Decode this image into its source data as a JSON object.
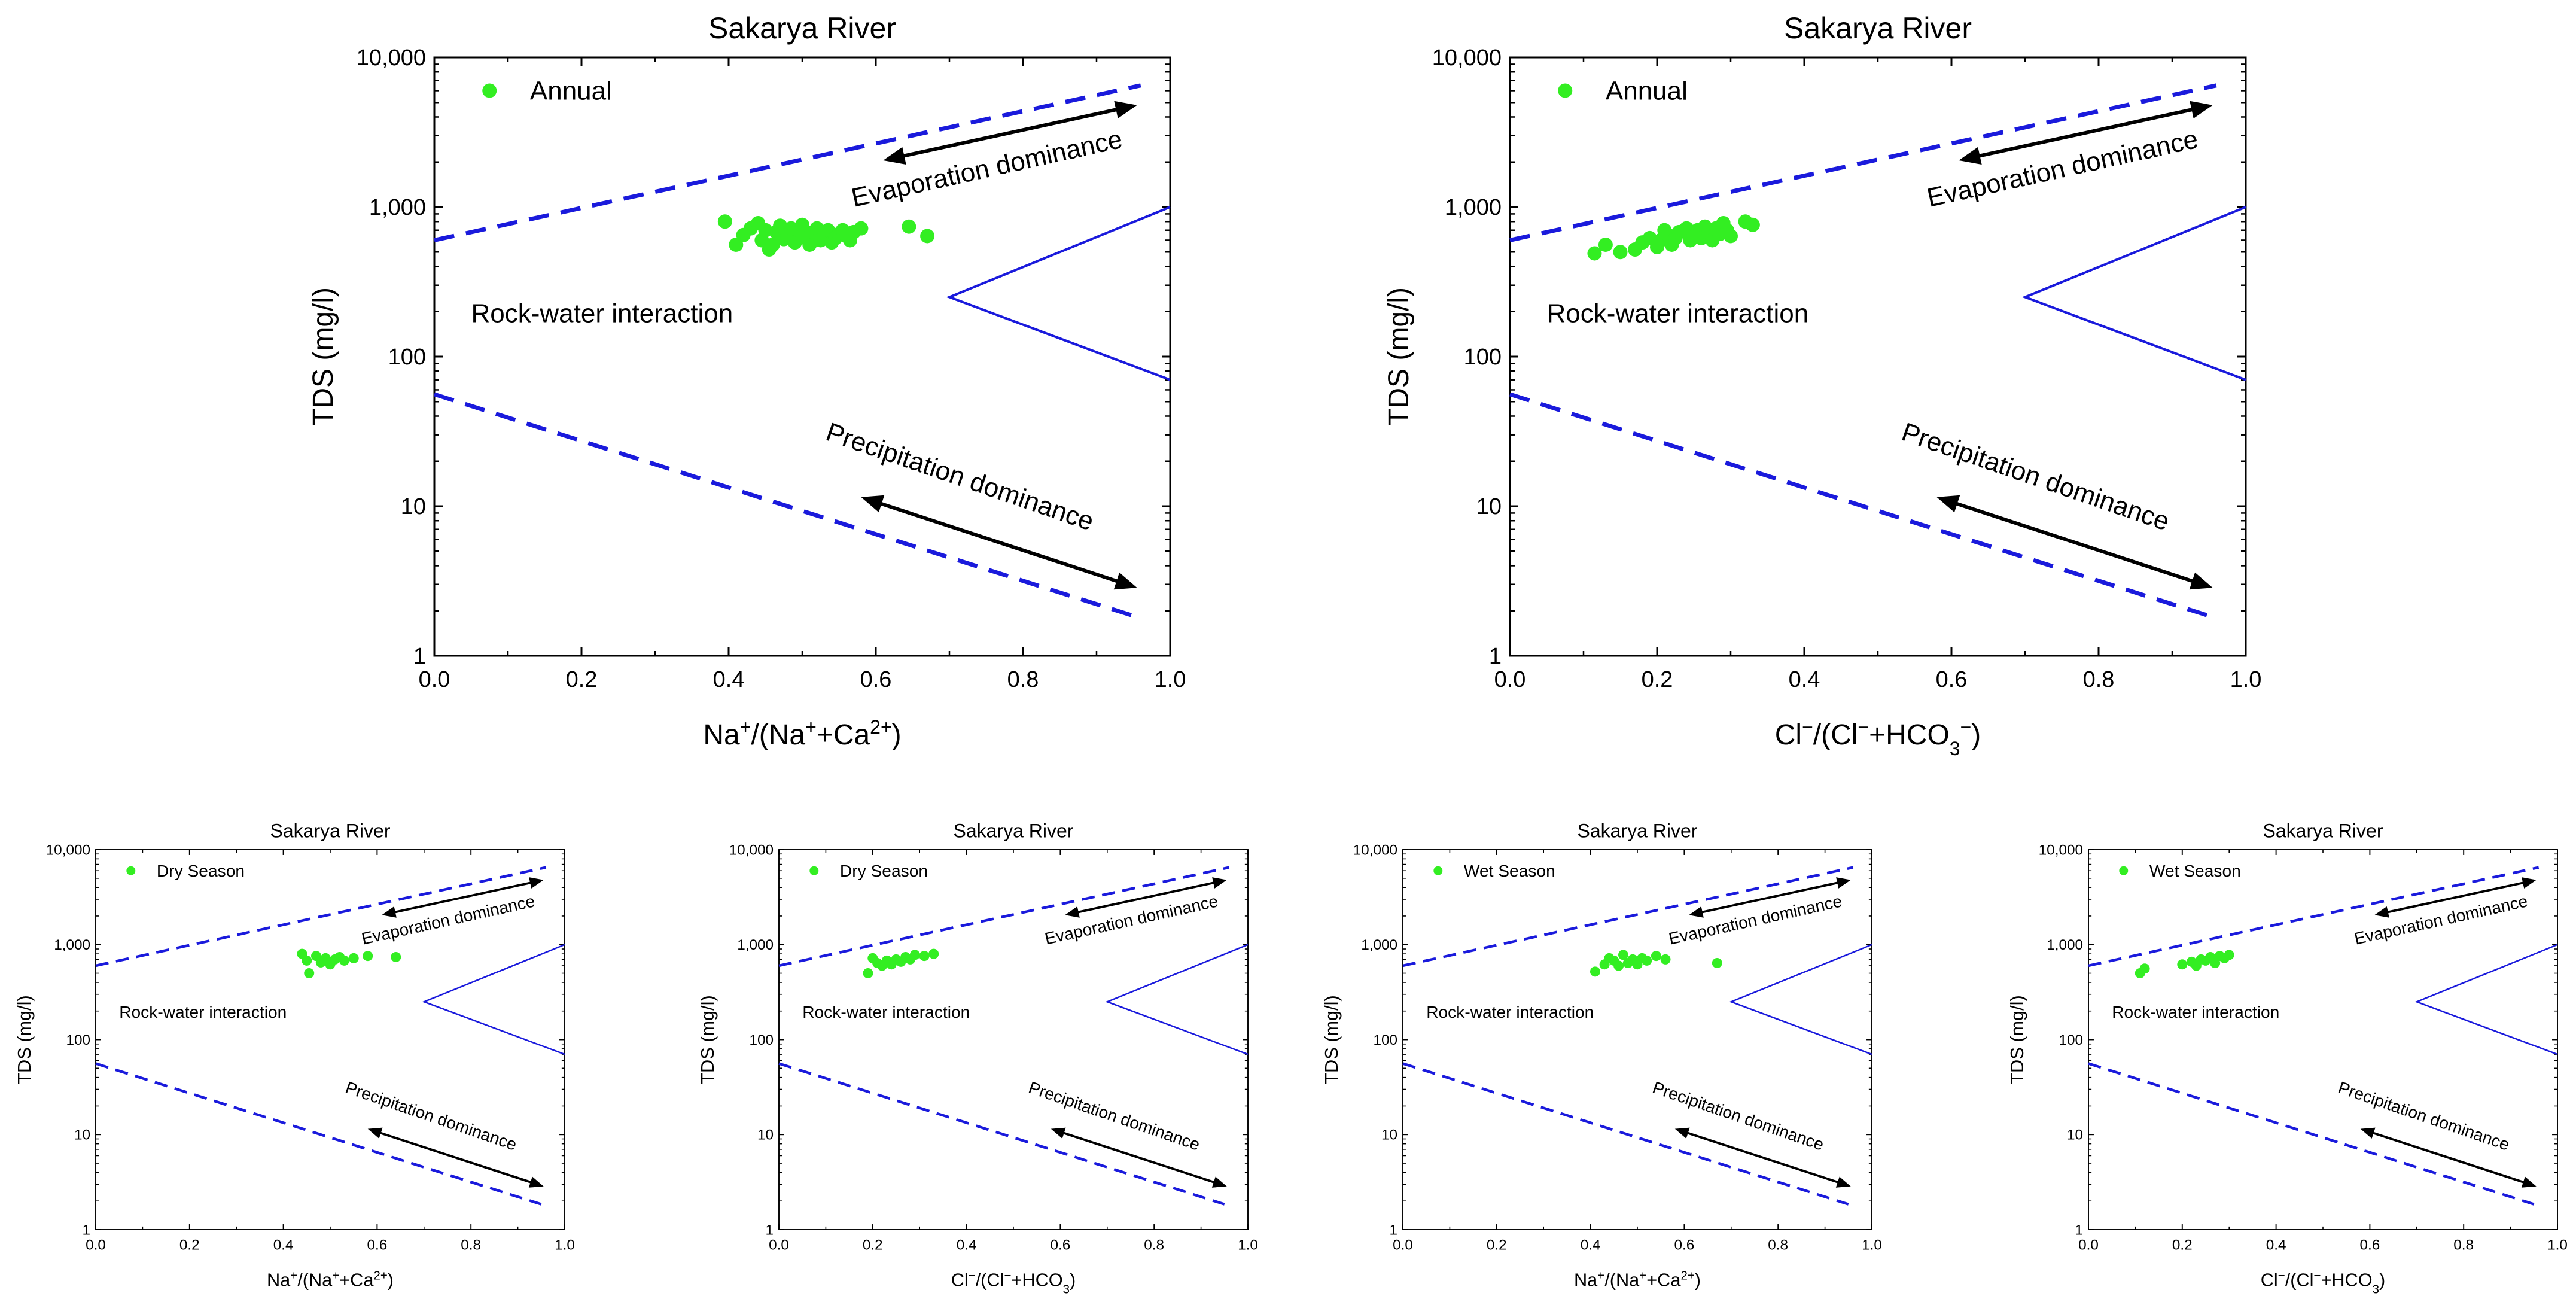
{
  "colors": {
    "marker": "#33ee22",
    "boundary": "#1a1adc",
    "arrow": "#000000",
    "axis": "#000000"
  },
  "chart_data": [
    {
      "type": "scatter",
      "title": "Sakarya River",
      "xlabel_parts": [
        [
          "Na",
          "n"
        ],
        [
          "+",
          "sup"
        ],
        [
          "/(Na",
          "n"
        ],
        [
          "+",
          "sup"
        ],
        [
          "+Ca",
          "n"
        ],
        [
          "2+",
          "sup"
        ],
        [
          ")",
          "n"
        ]
      ],
      "ylabel": "TDS (mg/l)",
      "xlim": [
        0,
        1
      ],
      "ylim": [
        1,
        10000
      ],
      "yscale": "log",
      "xticks": [
        "0.0",
        "0.2",
        "0.4",
        "0.6",
        "0.8",
        "1.0"
      ],
      "yticks": [
        "1",
        "10",
        "100",
        "1,000",
        "10,000"
      ],
      "legend": "Annual",
      "labels": {
        "rock": "Rock-water interaction",
        "evap": "Evaporation dominance",
        "precip": "Precipitation dominance"
      },
      "points": [
        [
          0.395,
          800
        ],
        [
          0.41,
          560
        ],
        [
          0.42,
          650
        ],
        [
          0.43,
          720
        ],
        [
          0.44,
          780
        ],
        [
          0.445,
          600
        ],
        [
          0.45,
          700
        ],
        [
          0.455,
          520
        ],
        [
          0.46,
          560
        ],
        [
          0.465,
          680
        ],
        [
          0.47,
          750
        ],
        [
          0.475,
          610
        ],
        [
          0.48,
          640
        ],
        [
          0.485,
          720
        ],
        [
          0.49,
          580
        ],
        [
          0.495,
          700
        ],
        [
          0.5,
          760
        ],
        [
          0.505,
          620
        ],
        [
          0.51,
          560
        ],
        [
          0.515,
          680
        ],
        [
          0.52,
          720
        ],
        [
          0.525,
          600
        ],
        [
          0.53,
          650
        ],
        [
          0.535,
          700
        ],
        [
          0.54,
          580
        ],
        [
          0.545,
          620
        ],
        [
          0.55,
          660
        ],
        [
          0.555,
          700
        ],
        [
          0.56,
          640
        ],
        [
          0.565,
          600
        ],
        [
          0.57,
          680
        ],
        [
          0.58,
          720
        ],
        [
          0.645,
          740
        ],
        [
          0.67,
          640
        ]
      ]
    },
    {
      "type": "scatter",
      "title": "Sakarya River",
      "xlabel_parts": [
        [
          "Cl",
          "n"
        ],
        [
          "−",
          "sup"
        ],
        [
          "/(Cl",
          "n"
        ],
        [
          "−",
          "sup"
        ],
        [
          "+HCO",
          "n"
        ],
        [
          "3",
          "sub"
        ],
        [
          "−",
          "sup"
        ],
        [
          ")",
          "n"
        ]
      ],
      "ylabel": "TDS (mg/l)",
      "xlim": [
        0,
        1
      ],
      "ylim": [
        1,
        10000
      ],
      "yscale": "log",
      "xticks": [
        "0.0",
        "0.2",
        "0.4",
        "0.6",
        "0.8",
        "1.0"
      ],
      "yticks": [
        "1",
        "10",
        "100",
        "1,000",
        "10,000"
      ],
      "legend": "Annual",
      "labels": {
        "rock": "Rock-water interaction",
        "evap": "Evaporation dominance",
        "precip": "Precipitation dominance"
      },
      "points": [
        [
          0.115,
          490
        ],
        [
          0.13,
          560
        ],
        [
          0.15,
          500
        ],
        [
          0.17,
          520
        ],
        [
          0.18,
          580
        ],
        [
          0.19,
          620
        ],
        [
          0.2,
          540
        ],
        [
          0.205,
          600
        ],
        [
          0.21,
          700
        ],
        [
          0.215,
          650
        ],
        [
          0.22,
          560
        ],
        [
          0.225,
          620
        ],
        [
          0.23,
          680
        ],
        [
          0.24,
          720
        ],
        [
          0.245,
          600
        ],
        [
          0.25,
          650
        ],
        [
          0.255,
          700
        ],
        [
          0.26,
          620
        ],
        [
          0.265,
          740
        ],
        [
          0.27,
          680
        ],
        [
          0.275,
          600
        ],
        [
          0.28,
          720
        ],
        [
          0.285,
          660
        ],
        [
          0.29,
          780
        ],
        [
          0.295,
          700
        ],
        [
          0.3,
          640
        ],
        [
          0.32,
          800
        ],
        [
          0.33,
          760
        ]
      ]
    },
    {
      "type": "scatter",
      "title": "Sakarya River",
      "xlabel_parts": [
        [
          "Na",
          "n"
        ],
        [
          "+",
          "sup"
        ],
        [
          "/(Na",
          "n"
        ],
        [
          "+",
          "sup"
        ],
        [
          "+Ca",
          "n"
        ],
        [
          "2+",
          "sup"
        ],
        [
          ")",
          "n"
        ]
      ],
      "ylabel": "TDS (mg/l)",
      "xlim": [
        0,
        1
      ],
      "ylim": [
        1,
        10000
      ],
      "yscale": "log",
      "xticks": [
        "0.0",
        "0.2",
        "0.4",
        "0.6",
        "0.8",
        "1.0"
      ],
      "yticks": [
        "1",
        "10",
        "100",
        "1,000",
        "10,000"
      ],
      "legend": "Dry Season",
      "labels": {
        "rock": "Rock-water interaction",
        "evap": "Evaporation dominance",
        "precip": "Precipitation dominance"
      },
      "points": [
        [
          0.44,
          800
        ],
        [
          0.45,
          680
        ],
        [
          0.455,
          500
        ],
        [
          0.47,
          760
        ],
        [
          0.48,
          650
        ],
        [
          0.49,
          720
        ],
        [
          0.5,
          620
        ],
        [
          0.51,
          700
        ],
        [
          0.52,
          740
        ],
        [
          0.53,
          680
        ],
        [
          0.55,
          720
        ],
        [
          0.58,
          760
        ],
        [
          0.64,
          740
        ]
      ]
    },
    {
      "type": "scatter",
      "title": "Sakarya River",
      "xlabel_parts": [
        [
          "Cl",
          "n"
        ],
        [
          "−",
          "sup"
        ],
        [
          "/(Cl",
          "n"
        ],
        [
          "−",
          "sup"
        ],
        [
          "+HCO",
          "n"
        ],
        [
          "3",
          "sub"
        ],
        [
          ")",
          "n"
        ]
      ],
      "ylabel": "TDS (mg/l)",
      "xlim": [
        0,
        1
      ],
      "ylim": [
        1,
        10000
      ],
      "yscale": "log",
      "xticks": [
        "0.0",
        "0.2",
        "0.4",
        "0.6",
        "0.8",
        "1.0"
      ],
      "yticks": [
        "1",
        "10",
        "100",
        "1,000",
        "10,000"
      ],
      "legend": "Dry Season",
      "labels": {
        "rock": "Rock-water interaction",
        "evap": "Evaporation dominance",
        "precip": "Precipitation dominance"
      },
      "points": [
        [
          0.19,
          500
        ],
        [
          0.2,
          720
        ],
        [
          0.21,
          640
        ],
        [
          0.22,
          600
        ],
        [
          0.23,
          680
        ],
        [
          0.24,
          620
        ],
        [
          0.25,
          700
        ],
        [
          0.26,
          660
        ],
        [
          0.27,
          740
        ],
        [
          0.28,
          700
        ],
        [
          0.29,
          780
        ],
        [
          0.31,
          760
        ],
        [
          0.33,
          800
        ]
      ]
    },
    {
      "type": "scatter",
      "title": "Sakarya River",
      "xlabel_parts": [
        [
          "Na",
          "n"
        ],
        [
          "+",
          "sup"
        ],
        [
          "/(Na",
          "n"
        ],
        [
          "+",
          "sup"
        ],
        [
          "+Ca",
          "n"
        ],
        [
          "2+",
          "sup"
        ],
        [
          ")",
          "n"
        ]
      ],
      "ylabel": "TDS (mg/l)",
      "xlim": [
        0,
        1
      ],
      "ylim": [
        1,
        10000
      ],
      "yscale": "log",
      "xticks": [
        "0.0",
        "0.2",
        "0.4",
        "0.6",
        "0.8",
        "1.0"
      ],
      "yticks": [
        "1",
        "10",
        "100",
        "1,000",
        "10,000"
      ],
      "legend": "Wet Season",
      "labels": {
        "rock": "Rock-water interaction",
        "evap": "Evaporation dominance",
        "precip": "Precipitation dominance"
      },
      "points": [
        [
          0.41,
          520
        ],
        [
          0.43,
          620
        ],
        [
          0.44,
          720
        ],
        [
          0.45,
          680
        ],
        [
          0.46,
          600
        ],
        [
          0.47,
          780
        ],
        [
          0.48,
          640
        ],
        [
          0.49,
          700
        ],
        [
          0.5,
          620
        ],
        [
          0.51,
          720
        ],
        [
          0.52,
          680
        ],
        [
          0.54,
          760
        ],
        [
          0.56,
          700
        ],
        [
          0.67,
          640
        ]
      ]
    },
    {
      "type": "scatter",
      "title": "Sakarya River",
      "xlabel_parts": [
        [
          "Cl",
          "n"
        ],
        [
          "−",
          "sup"
        ],
        [
          "/(Cl",
          "n"
        ],
        [
          "−",
          "sup"
        ],
        [
          "+HCO",
          "n"
        ],
        [
          "3",
          "sub"
        ],
        [
          ")",
          "n"
        ]
      ],
      "ylabel": "TDS (mg/l)",
      "xlim": [
        0,
        1
      ],
      "ylim": [
        1,
        10000
      ],
      "yscale": "log",
      "xticks": [
        "0.0",
        "0.2",
        "0.4",
        "0.6",
        "0.8",
        "1.0"
      ],
      "yticks": [
        "1",
        "10",
        "100",
        "1,000",
        "10,000"
      ],
      "legend": "Wet Season",
      "labels": {
        "rock": "Rock-water interaction",
        "evap": "Evaporation dominance",
        "precip": "Precipitation dominance"
      },
      "points": [
        [
          0.11,
          500
        ],
        [
          0.12,
          560
        ],
        [
          0.2,
          620
        ],
        [
          0.22,
          660
        ],
        [
          0.23,
          600
        ],
        [
          0.24,
          700
        ],
        [
          0.25,
          680
        ],
        [
          0.26,
          740
        ],
        [
          0.27,
          640
        ],
        [
          0.28,
          760
        ],
        [
          0.29,
          720
        ],
        [
          0.3,
          780
        ]
      ]
    }
  ]
}
